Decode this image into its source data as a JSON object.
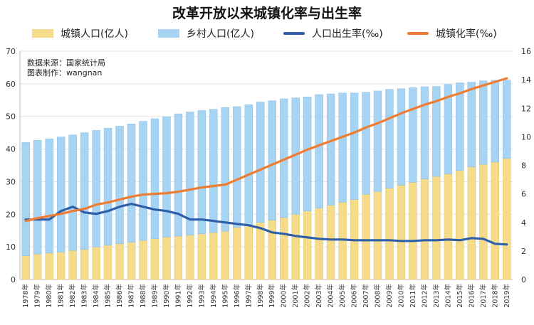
{
  "chart_data": {
    "type": "bar",
    "title": "改革开放以来城镇化率与出生率",
    "categories": [
      "1978年",
      "1979年",
      "1980年",
      "1981年",
      "1982年",
      "1983年",
      "1984年",
      "1985年",
      "1986年",
      "1987年",
      "1988年",
      "1989年",
      "1990年",
      "1991年",
      "1992年",
      "1993年",
      "1994年",
      "1995年",
      "1996年",
      "1997年",
      "1998年",
      "1999年",
      "2000年",
      "2001年",
      "2002年",
      "2003年",
      "2004年",
      "2005年",
      "2006年",
      "2007年",
      "2008年",
      "2009年",
      "2010年",
      "2011年",
      "2012年",
      "2013年",
      "2014年",
      "2015年",
      "2016年",
      "2017年",
      "2018年",
      "2019年"
    ],
    "series": [
      {
        "name": "城镇人口(亿人)",
        "type": "bar",
        "axis": "left",
        "color": "#f5dc8a",
        "values": [
          7.3,
          7.8,
          8.1,
          8.4,
          8.9,
          9.2,
          10.0,
          10.5,
          11.0,
          11.4,
          12.0,
          12.5,
          13.0,
          13.3,
          13.6,
          14.0,
          14.4,
          14.8,
          16.0,
          16.5,
          17.5,
          18.2,
          19.0,
          20.0,
          21.0,
          21.9,
          22.8,
          23.7,
          24.5,
          26.1,
          27.0,
          28.0,
          28.9,
          29.8,
          30.8,
          31.6,
          32.4,
          33.4,
          34.5,
          35.3,
          36.0,
          37.1
        ]
      },
      {
        "name": "乡村人口(亿人)",
        "type": "bar",
        "axis": "left",
        "color": "#a8d4f3",
        "values": [
          34.7,
          34.9,
          35.0,
          35.3,
          35.4,
          35.8,
          35.7,
          35.9,
          36.0,
          36.3,
          36.5,
          36.8,
          36.9,
          37.5,
          37.8,
          37.8,
          37.8,
          37.9,
          37.0,
          37.1,
          36.9,
          36.6,
          36.4,
          35.7,
          35.0,
          34.8,
          34.1,
          33.5,
          32.7,
          31.3,
          30.8,
          30.3,
          29.6,
          29.0,
          28.3,
          27.6,
          27.4,
          26.9,
          26.0,
          25.6,
          25.1,
          24.0
        ]
      },
      {
        "name": "人口出生率(‰)",
        "type": "line",
        "axis": "right",
        "color": "#2e5fa8",
        "values": [
          4.2,
          4.2,
          4.2,
          4.8,
          5.1,
          4.7,
          4.6,
          4.8,
          5.1,
          5.3,
          5.1,
          4.9,
          4.8,
          4.6,
          4.2,
          4.2,
          4.1,
          4.0,
          3.9,
          3.8,
          3.6,
          3.3,
          3.2,
          3.05,
          2.95,
          2.85,
          2.8,
          2.8,
          2.75,
          2.75,
          2.75,
          2.75,
          2.7,
          2.7,
          2.75,
          2.75,
          2.8,
          2.75,
          2.9,
          2.85,
          2.5,
          2.45
        ]
      },
      {
        "name": "城镇化率(‰)",
        "type": "line",
        "axis": "right",
        "color": "#ee7d31",
        "values": [
          4.1,
          4.3,
          4.45,
          4.6,
          4.8,
          4.95,
          5.25,
          5.4,
          5.6,
          5.8,
          5.95,
          6.0,
          6.05,
          6.15,
          6.3,
          6.45,
          6.55,
          6.65,
          7.0,
          7.35,
          7.7,
          8.05,
          8.4,
          8.75,
          9.1,
          9.4,
          9.7,
          10.0,
          10.3,
          10.65,
          10.95,
          11.3,
          11.65,
          11.95,
          12.25,
          12.5,
          12.8,
          13.05,
          13.35,
          13.6,
          13.85,
          14.1
        ]
      }
    ],
    "y_left": {
      "min": 0,
      "max": 70,
      "ticks": [
        0,
        10,
        20,
        30,
        40,
        50,
        60,
        70
      ]
    },
    "y_right": {
      "min": 0,
      "max": 16,
      "ticks": [
        0,
        2,
        4,
        6,
        8,
        10,
        12,
        14,
        16
      ]
    },
    "grid": true,
    "legend_position": "top",
    "note_lines": [
      "数据来源：国家统计局",
      "图表制作：wangnan"
    ]
  },
  "colors": {
    "urban_bar": "#f5dc8a",
    "rural_bar": "#a8d4f3",
    "birth_line": "#2e5fa8",
    "urban_rate_line": "#ee7d31"
  }
}
